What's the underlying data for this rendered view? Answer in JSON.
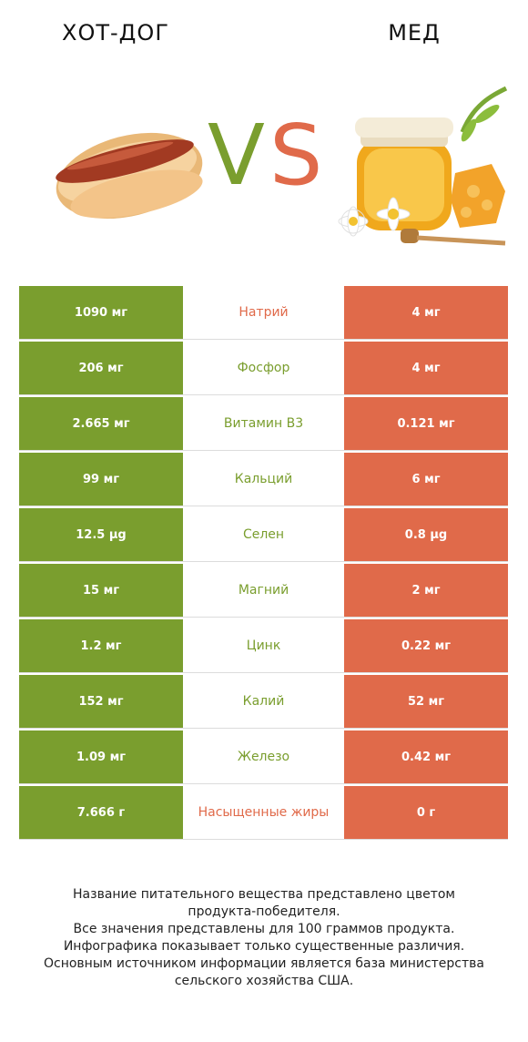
{
  "header": {
    "left_title": "ХОТ-ДОГ",
    "right_title": "МЕД",
    "vs_v": "V",
    "vs_s": "S"
  },
  "colors": {
    "left_winner": "#7a9e2e",
    "right_winner": "#e06a4a"
  },
  "rows": [
    {
      "left": "1090 мг",
      "nutrient": "Натрий",
      "right": "4 мг",
      "winner": "right"
    },
    {
      "left": "206 мг",
      "nutrient": "Фосфор",
      "right": "4 мг",
      "winner": "left"
    },
    {
      "left": "2.665 мг",
      "nutrient": "Витамин B3",
      "right": "0.121 мг",
      "winner": "left"
    },
    {
      "left": "99 мг",
      "nutrient": "Кальций",
      "right": "6 мг",
      "winner": "left"
    },
    {
      "left": "12.5 µg",
      "nutrient": "Селен",
      "right": "0.8 µg",
      "winner": "left"
    },
    {
      "left": "15 мг",
      "nutrient": "Магний",
      "right": "2 мг",
      "winner": "left"
    },
    {
      "left": "1.2 мг",
      "nutrient": "Цинк",
      "right": "0.22 мг",
      "winner": "left"
    },
    {
      "left": "152 мг",
      "nutrient": "Калий",
      "right": "52 мг",
      "winner": "left"
    },
    {
      "left": "1.09 мг",
      "nutrient": "Железо",
      "right": "0.42 мг",
      "winner": "left"
    },
    {
      "left": "7.666 г",
      "nutrient": "Насыщенные жиры",
      "right": "0 г",
      "winner": "right"
    }
  ],
  "footer": {
    "line1": "Название питательного вещества представлено цветом",
    "line2": "продукта-победителя.",
    "line3": "Все значения представлены для 100 граммов продукта.",
    "line4": "Инфографика показывает только существенные различия.",
    "line5": "Основным источником информации является база министерства",
    "line6": "сельского хозяйства США."
  }
}
